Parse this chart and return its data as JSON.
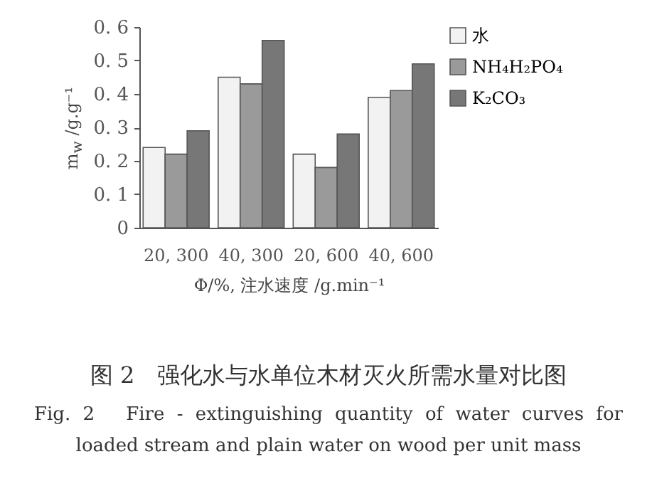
{
  "chart_data": {
    "type": "bar",
    "categories": [
      "20, 300",
      "40, 300",
      "20, 600",
      "40, 600"
    ],
    "series": [
      {
        "name": "水",
        "color": "#f2f2f2",
        "values": [
          0.24,
          0.45,
          0.22,
          0.39
        ]
      },
      {
        "name": "NH₄H₂PO₄",
        "color": "#9a9a9a",
        "values": [
          0.22,
          0.43,
          0.18,
          0.41
        ]
      },
      {
        "name": "K₂CO₃",
        "color": "#777777",
        "values": [
          0.29,
          0.56,
          0.28,
          0.49
        ]
      }
    ],
    "xlabel": "Φ/%, 注水速度 /g.min⁻¹",
    "ylabel": "m$_{w}$ /g.g⁻¹",
    "ylim": [
      0,
      0.6
    ],
    "yticks": [
      0,
      0.1,
      0.2,
      0.3,
      0.4,
      0.5,
      0.6
    ],
    "grid": false,
    "legend": "top right",
    "annotations": [
      "图 2　强化水与水单位木材灭火所需水量对比图",
      "Fig. 2　Fire - extinguishing quantity of water curves for loaded stream and plain water on wood per unit mass"
    ]
  }
}
